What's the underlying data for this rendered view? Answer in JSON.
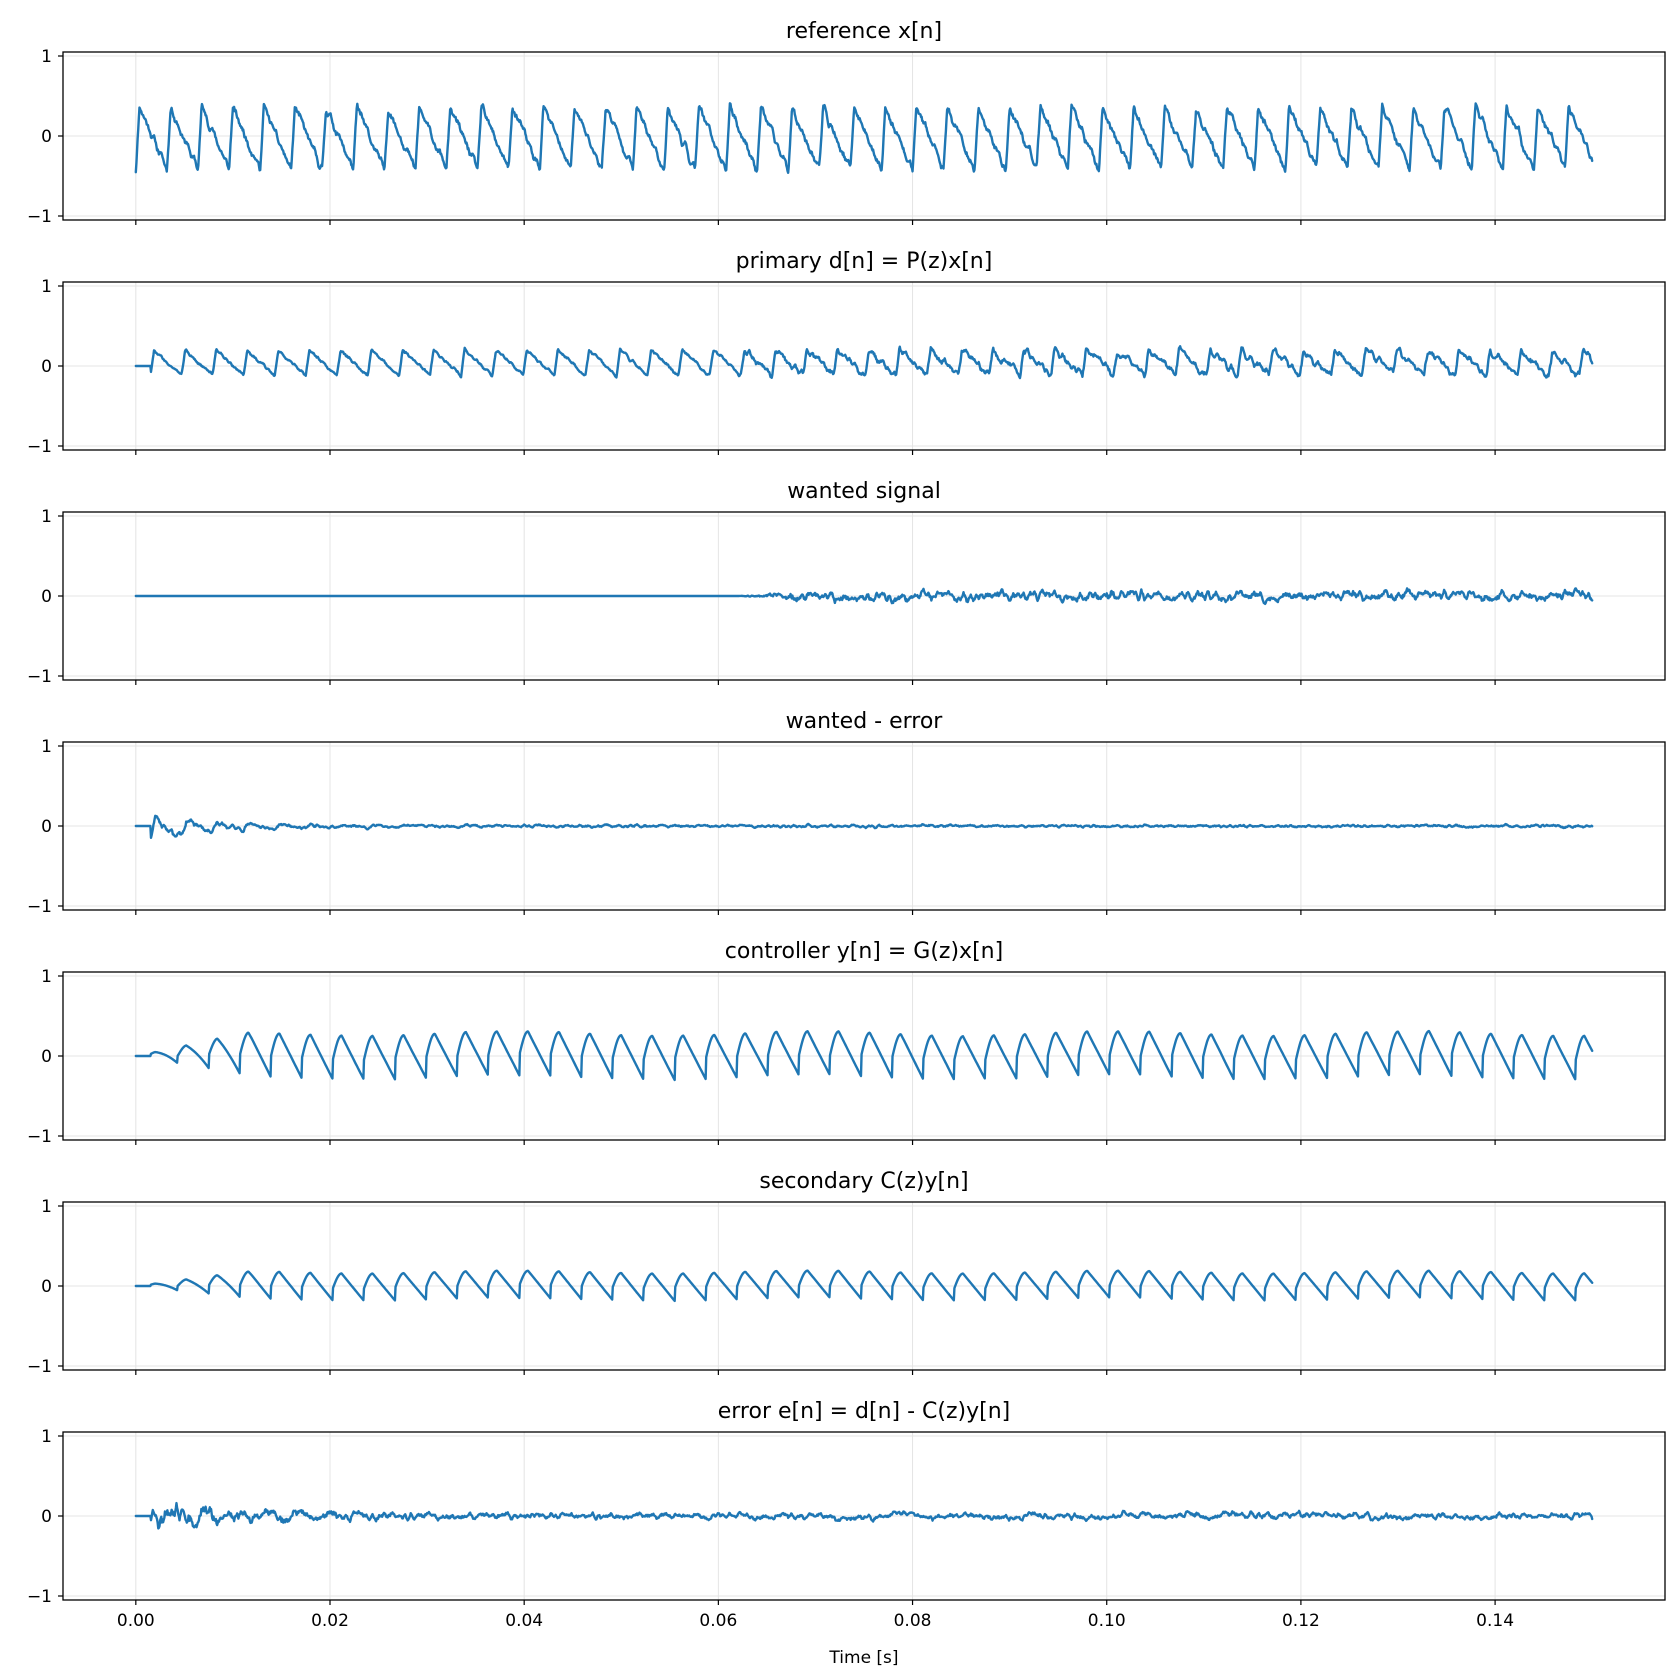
{
  "chart_data": {
    "type": "line",
    "xlabel": "Time [s]",
    "x_ticks": [
      0.0,
      0.02,
      0.04,
      0.06,
      0.08,
      0.1,
      0.12,
      0.14
    ],
    "x_tick_labels": [
      "0.00",
      "0.02",
      "0.04",
      "0.06",
      "0.08",
      "0.10",
      "0.12",
      "0.14"
    ],
    "xlim": [
      -0.0075,
      0.1575
    ],
    "line_color": "#1f77b4",
    "grid": true,
    "sharex": true,
    "panels": [
      {
        "title": "reference x[n]",
        "ylim": [
          -1.05,
          1.05
        ],
        "y_ticks": [
          -1,
          0,
          1
        ],
        "y_tick_labels": [
          "−1",
          "0",
          "1"
        ],
        "series": [
          {
            "x_start": 0.0,
            "x_end": 0.15,
            "period": 0.0032,
            "amplitude_range": [
              -0.5,
              0.55
            ],
            "shape": "sawtooth with noise"
          }
        ]
      },
      {
        "title": "primary d[n] = P(z)x[n]",
        "ylim": [
          -1.05,
          1.05
        ],
        "y_ticks": [
          -1,
          0,
          1
        ],
        "y_tick_labels": [
          "−1",
          "0",
          "1"
        ],
        "series": [
          {
            "x_start": 0.0,
            "x_end": 0.15,
            "delay": 0.0015,
            "period": 0.0032,
            "amplitude_range": [
              -0.32,
              0.33
            ],
            "shape": "sawtooth with noise"
          }
        ]
      },
      {
        "title": "wanted signal",
        "ylim": [
          -1.05,
          1.05
        ],
        "y_ticks": [
          -1,
          0,
          1
        ],
        "y_tick_labels": [
          "−1",
          "0",
          "1"
        ],
        "series": [
          {
            "x_start": 0.0,
            "x_end": 0.15,
            "zero_until": 0.062,
            "amplitude_range": [
              -0.22,
              0.22
            ],
            "shape": "noise"
          }
        ]
      },
      {
        "title": "wanted - error",
        "ylim": [
          -1.05,
          1.05
        ],
        "y_ticks": [
          -1,
          0,
          1
        ],
        "y_tick_labels": [
          "−1",
          "0",
          "1"
        ],
        "series": [
          {
            "x_start": 0.0,
            "x_end": 0.15,
            "initial_transient_peak": 0.18,
            "amplitude_range": [
              -0.2,
              0.18
            ],
            "shape": "decaying residual"
          }
        ]
      },
      {
        "title": "controller y[n] = G(z)x[n]",
        "ylim": [
          -1.05,
          1.05
        ],
        "y_ticks": [
          -1,
          0,
          1
        ],
        "y_tick_labels": [
          "−1",
          "0",
          "1"
        ],
        "series": [
          {
            "x_start": 0.0,
            "x_end": 0.15,
            "period": 0.0032,
            "amplitude_range": [
              -0.32,
              0.35
            ],
            "shape": "smooth sawtooth, growing"
          }
        ]
      },
      {
        "title": "secondary C(z)y[n]",
        "ylim": [
          -1.05,
          1.05
        ],
        "y_ticks": [
          -1,
          0,
          1
        ],
        "y_tick_labels": [
          "−1",
          "0",
          "1"
        ],
        "series": [
          {
            "x_start": 0.0,
            "x_end": 0.15,
            "period": 0.0032,
            "amplitude_range": [
              -0.2,
              0.22
            ],
            "shape": "smooth sawtooth, growing"
          }
        ]
      },
      {
        "title": "error e[n] = d[n] - C(z)y[n]",
        "ylim": [
          -1.05,
          1.05
        ],
        "y_ticks": [
          -1,
          0,
          1
        ],
        "y_tick_labels": [
          "−1",
          "0",
          "1"
        ],
        "series": [
          {
            "x_start": 0.0,
            "x_end": 0.15,
            "amplitude_range": [
              -0.22,
              0.22
            ],
            "shape": "noise"
          }
        ]
      }
    ]
  }
}
